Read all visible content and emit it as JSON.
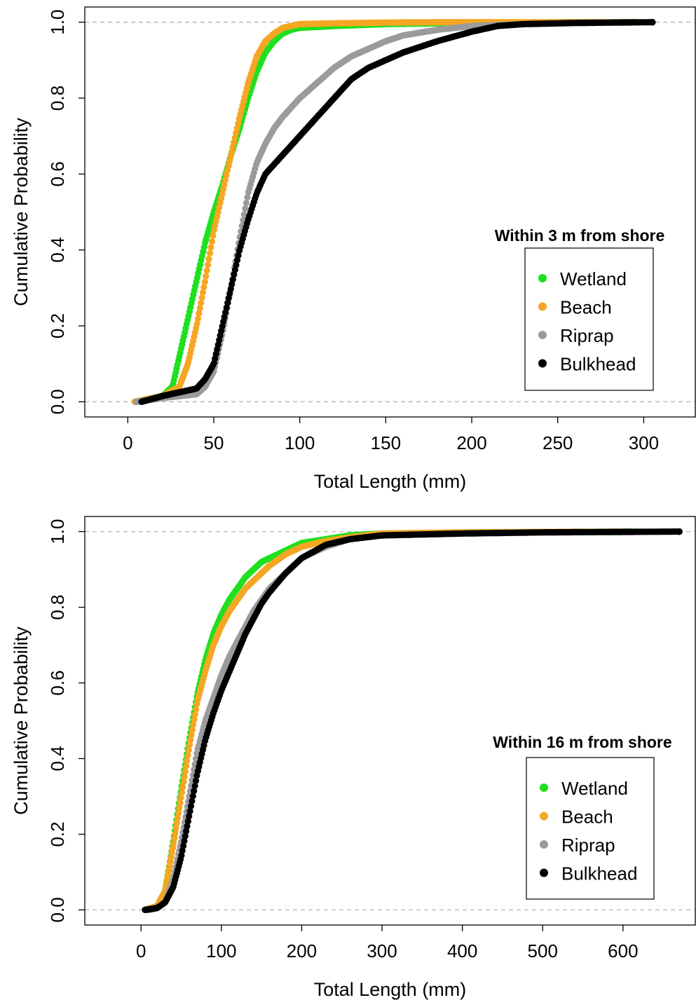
{
  "chart_data": [
    {
      "type": "scatter",
      "subtype": "empirical cumulative distribution",
      "xlabel": "Total Length (mm)",
      "ylabel": "Cumulative Probability",
      "xlim": [
        -25,
        330
      ],
      "ylim": [
        -0.04,
        1.04
      ],
      "xticks": [
        0,
        50,
        100,
        150,
        200,
        250,
        300
      ],
      "yticks": [
        0.0,
        0.2,
        0.4,
        0.6,
        0.8,
        1.0
      ],
      "xtick_labels": [
        "0",
        "50",
        "100",
        "150",
        "200",
        "250",
        "300"
      ],
      "ytick_labels": [
        "0.0",
        "0.2",
        "0.4",
        "0.6",
        "0.8",
        "1.0"
      ],
      "grid": false,
      "reference_lines_y": [
        0,
        1
      ],
      "legend": {
        "title": "Within 3 m from shore",
        "position": "right"
      },
      "series": [
        {
          "name": "Wetland",
          "color": "#1fe01f",
          "min": 5,
          "max": 295,
          "x": [
            5,
            20,
            26,
            30,
            35,
            40,
            45,
            50,
            55,
            60,
            65,
            70,
            75,
            80,
            85,
            90,
            95,
            100,
            120,
            150,
            180,
            215,
            295
          ],
          "y": [
            0.0,
            0.015,
            0.04,
            0.12,
            0.22,
            0.32,
            0.42,
            0.5,
            0.57,
            0.65,
            0.72,
            0.8,
            0.87,
            0.92,
            0.95,
            0.97,
            0.98,
            0.985,
            0.99,
            0.995,
            0.997,
            0.999,
            1.0
          ]
        },
        {
          "name": "Beach",
          "color": "#f5a623",
          "min": 4,
          "max": 292,
          "x": [
            4,
            20,
            30,
            35,
            40,
            45,
            50,
            55,
            60,
            65,
            70,
            75,
            80,
            85,
            90,
            95,
            100,
            120,
            150,
            180,
            292
          ],
          "y": [
            0.0,
            0.015,
            0.04,
            0.1,
            0.2,
            0.32,
            0.45,
            0.55,
            0.65,
            0.75,
            0.84,
            0.91,
            0.95,
            0.97,
            0.985,
            0.99,
            0.995,
            0.997,
            0.999,
            1.0,
            1.0
          ]
        },
        {
          "name": "Riprap",
          "color": "#9b9b9b",
          "min": 5,
          "max": 290,
          "x": [
            5,
            20,
            40,
            45,
            50,
            55,
            60,
            65,
            70,
            75,
            80,
            85,
            90,
            100,
            110,
            120,
            130,
            140,
            150,
            160,
            180,
            200,
            230,
            260,
            290
          ],
          "y": [
            0.0,
            0.01,
            0.02,
            0.04,
            0.08,
            0.18,
            0.3,
            0.43,
            0.55,
            0.63,
            0.68,
            0.72,
            0.75,
            0.8,
            0.84,
            0.88,
            0.91,
            0.93,
            0.95,
            0.965,
            0.98,
            0.99,
            0.995,
            0.998,
            1.0
          ]
        },
        {
          "name": "Bulkhead",
          "color": "#000000",
          "min": 8,
          "max": 305,
          "x": [
            8,
            20,
            40,
            45,
            50,
            55,
            60,
            65,
            70,
            75,
            80,
            90,
            100,
            110,
            120,
            130,
            140,
            150,
            160,
            170,
            180,
            200,
            215,
            230,
            260,
            305
          ],
          "y": [
            0.0,
            0.015,
            0.035,
            0.06,
            0.1,
            0.2,
            0.3,
            0.4,
            0.48,
            0.55,
            0.6,
            0.65,
            0.7,
            0.75,
            0.8,
            0.85,
            0.88,
            0.9,
            0.92,
            0.935,
            0.95,
            0.975,
            0.99,
            0.995,
            0.998,
            1.0
          ]
        }
      ]
    },
    {
      "type": "scatter",
      "subtype": "empirical cumulative distribution",
      "xlabel": "Total Length (mm)",
      "ylabel": "Cumulative Probability",
      "xlim": [
        -70,
        690
      ],
      "ylim": [
        -0.04,
        1.04
      ],
      "xticks": [
        0,
        100,
        200,
        300,
        400,
        500,
        600
      ],
      "yticks": [
        0.0,
        0.2,
        0.4,
        0.6,
        0.8,
        1.0
      ],
      "xtick_labels": [
        "0",
        "100",
        "200",
        "300",
        "400",
        "500",
        "600"
      ],
      "ytick_labels": [
        "0.0",
        "0.2",
        "0.4",
        "0.6",
        "0.8",
        "1.0"
      ],
      "grid": false,
      "reference_lines_y": [
        0,
        1
      ],
      "legend": {
        "title": "Within 16 m from shore",
        "position": "right"
      },
      "series": [
        {
          "name": "Wetland",
          "color": "#1fe01f",
          "min": 5,
          "max": 610,
          "x": [
            5,
            20,
            30,
            40,
            50,
            60,
            70,
            80,
            90,
            100,
            110,
            120,
            130,
            140,
            150,
            160,
            180,
            200,
            230,
            260,
            300,
            400,
            500,
            610
          ],
          "y": [
            0.0,
            0.01,
            0.05,
            0.18,
            0.32,
            0.45,
            0.57,
            0.66,
            0.73,
            0.78,
            0.82,
            0.85,
            0.88,
            0.9,
            0.92,
            0.93,
            0.95,
            0.97,
            0.98,
            0.99,
            0.995,
            0.997,
            0.999,
            1.0
          ]
        },
        {
          "name": "Beach",
          "color": "#f5a623",
          "min": 5,
          "max": 600,
          "x": [
            5,
            20,
            30,
            40,
            50,
            60,
            70,
            80,
            90,
            100,
            110,
            120,
            130,
            140,
            150,
            160,
            180,
            200,
            230,
            260,
            300,
            400,
            600
          ],
          "y": [
            0.0,
            0.01,
            0.05,
            0.17,
            0.3,
            0.43,
            0.55,
            0.63,
            0.7,
            0.75,
            0.79,
            0.82,
            0.85,
            0.87,
            0.89,
            0.91,
            0.94,
            0.96,
            0.975,
            0.985,
            0.995,
            0.998,
            1.0
          ]
        },
        {
          "name": "Riprap",
          "color": "#9b9b9b",
          "min": 10,
          "max": 660,
          "x": [
            10,
            20,
            30,
            40,
            50,
            60,
            70,
            80,
            90,
            100,
            110,
            120,
            130,
            140,
            150,
            160,
            180,
            200,
            230,
            260,
            300,
            400,
            500,
            660
          ],
          "y": [
            0.0,
            0.005,
            0.02,
            0.08,
            0.18,
            0.3,
            0.42,
            0.5,
            0.56,
            0.62,
            0.67,
            0.71,
            0.75,
            0.79,
            0.82,
            0.85,
            0.89,
            0.93,
            0.96,
            0.98,
            0.99,
            0.995,
            0.998,
            1.0
          ]
        },
        {
          "name": "Bulkhead",
          "color": "#000000",
          "min": 5,
          "max": 670,
          "x": [
            5,
            20,
            30,
            40,
            50,
            60,
            70,
            80,
            90,
            100,
            110,
            120,
            130,
            140,
            150,
            160,
            180,
            200,
            230,
            260,
            300,
            400,
            500,
            670
          ],
          "y": [
            0.0,
            0.005,
            0.02,
            0.06,
            0.14,
            0.25,
            0.36,
            0.45,
            0.52,
            0.58,
            0.63,
            0.68,
            0.73,
            0.77,
            0.81,
            0.84,
            0.89,
            0.93,
            0.965,
            0.98,
            0.99,
            0.995,
            0.998,
            1.0
          ]
        }
      ]
    }
  ]
}
